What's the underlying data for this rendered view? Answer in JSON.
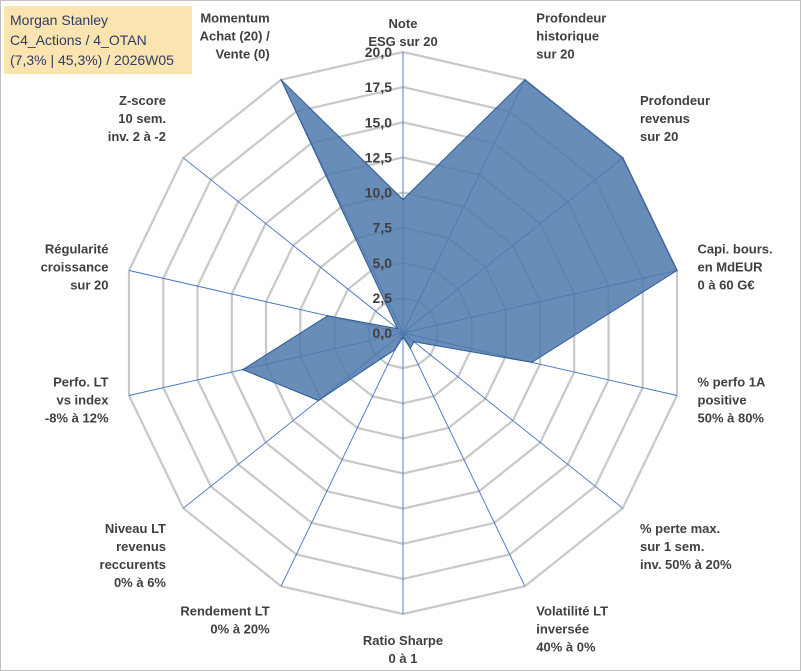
{
  "title": {
    "line1": "Morgan Stanley",
    "line2": "C4_Actions / 4_OTAN",
    "line3": "(7,3% | 45,3%) / 2026W05"
  },
  "colors": {
    "fill": "#4f79ad",
    "stroke": "#2e5b95",
    "grid": "#c8c8c8",
    "spoke": "#4472c4",
    "title_bg": "#fce4b0"
  },
  "chart_data": {
    "type": "radar",
    "rmin": 0,
    "rmax": 20,
    "ticks": [
      "0,0",
      "2,5",
      "5,0",
      "7,5",
      "10,0",
      "12,5",
      "15,0",
      "17,5",
      "20,0"
    ],
    "axes": [
      {
        "label": [
          "Note",
          "ESG sur 20"
        ],
        "value": 9.5
      },
      {
        "label": [
          "Profondeur",
          "historique",
          "sur 20"
        ],
        "value": 20
      },
      {
        "label": [
          "Profondeur",
          "revenus",
          "sur 20"
        ],
        "value": 20
      },
      {
        "label": [
          "Capi. bours.",
          "en MdEUR",
          "0 à 60 G€"
        ],
        "value": 20
      },
      {
        "label": [
          "% perfo 1A",
          "positive",
          "50% à 80%"
        ],
        "value": 9.4
      },
      {
        "label": [
          "% perte max.",
          "sur 1 sem.",
          "inv. 50% à 20%"
        ],
        "value": 1
      },
      {
        "label": [
          "Volatilité LT",
          "inversée",
          "40% à 0%"
        ],
        "value": 1.2
      },
      {
        "label": [
          "Ratio Sharpe",
          "0 à 1"
        ],
        "value": 0.3
      },
      {
        "label": [
          "Rendement LT",
          "0% à 20%"
        ],
        "value": 1.3
      },
      {
        "label": [
          "Niveau LT",
          "revenus",
          "reccurents",
          "0% à 6%"
        ],
        "value": 7.7
      },
      {
        "label": [
          "Perfo. LT",
          "vs index",
          "-8% à 12%"
        ],
        "value": 11.7
      },
      {
        "label": [
          "Régularité",
          "croissance",
          "sur 20"
        ],
        "value": 5.5
      },
      {
        "label": [
          "Z-score",
          "10 sem.",
          "inv. 2 à -2"
        ],
        "value": 0.5
      },
      {
        "label": [
          "Momentum",
          "Achat (20) /",
          "Vente (0)"
        ],
        "value": 20
      }
    ]
  }
}
